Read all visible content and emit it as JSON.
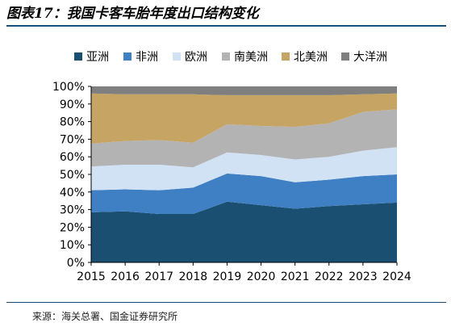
{
  "title": "图表17：我国卡客车胎年度出口结构变化",
  "source": "来源：海关总署、国金证券研究所",
  "chart_data": {
    "type": "area",
    "stacked": true,
    "x": [
      "2015",
      "2016",
      "2017",
      "2018",
      "2019",
      "2020",
      "2021",
      "2022",
      "2023",
      "2024"
    ],
    "ylim": [
      0,
      100
    ],
    "yticks": [
      "0%",
      "10%",
      "20%",
      "30%",
      "40%",
      "50%",
      "60%",
      "70%",
      "80%",
      "90%",
      "100%"
    ],
    "legend_position": "top",
    "grid": false,
    "series": [
      {
        "name": "亚洲",
        "color": "#1b4f72",
        "values": [
          28.5,
          29,
          27.5,
          27.5,
          34.5,
          32.5,
          30.5,
          32,
          33,
          34
        ]
      },
      {
        "name": "非洲",
        "color": "#3f7fc4",
        "values": [
          12.5,
          12.5,
          13.5,
          15,
          16,
          16.5,
          15,
          15,
          16,
          16
        ]
      },
      {
        "name": "欧洲",
        "color": "#d1e2f4",
        "values": [
          13.5,
          14,
          14.5,
          11.5,
          12,
          12,
          13,
          13,
          14.5,
          15.5
        ]
      },
      {
        "name": "南美洲",
        "color": "#b3b3b3",
        "values": [
          13,
          13.5,
          14,
          14,
          16,
          16.5,
          18.5,
          19,
          22,
          21.5
        ]
      },
      {
        "name": "北美洲",
        "color": "#c6a463",
        "values": [
          28.5,
          26.5,
          26,
          27.5,
          16.5,
          17.5,
          18,
          16,
          10,
          9
        ]
      },
      {
        "name": "大洋洲",
        "color": "#7f7f7f",
        "values": [
          4,
          4.5,
          4.5,
          4.5,
          5,
          5,
          5,
          5,
          4.5,
          4
        ]
      }
    ]
  }
}
